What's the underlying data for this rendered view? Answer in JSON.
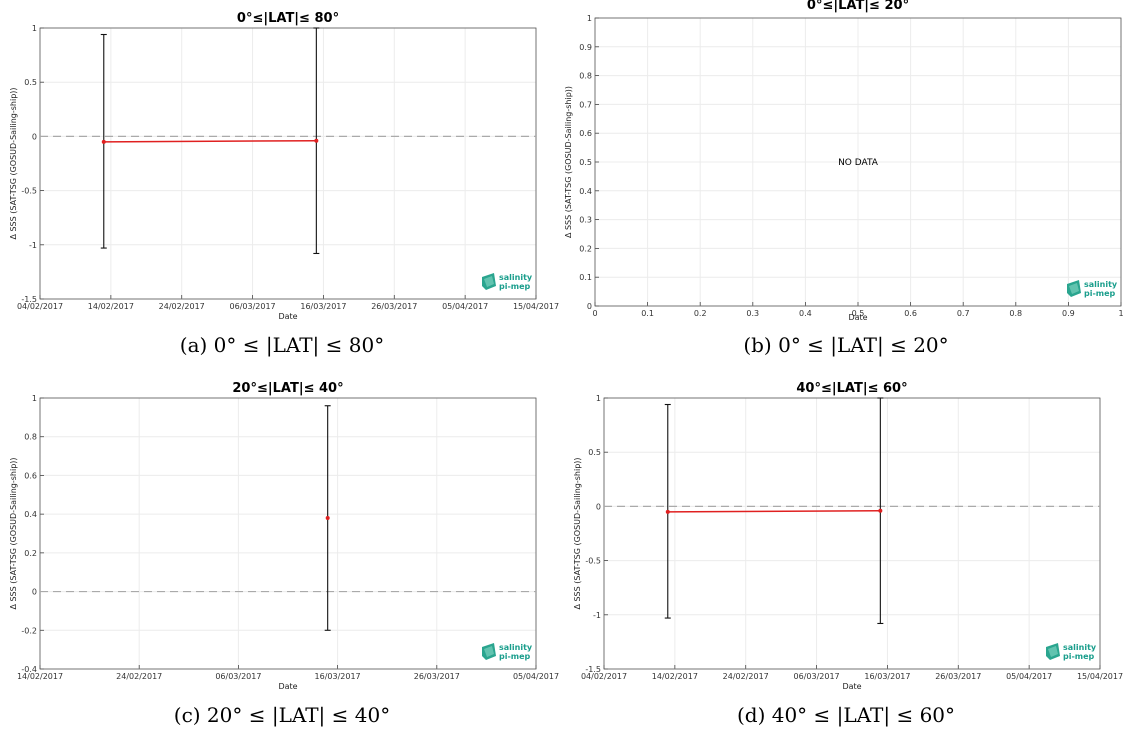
{
  "chart_data": [
    {
      "id": "a",
      "type": "line",
      "title": "0°≤|LAT|≤ 80°",
      "caption": "(a) 0° ≤ |LAT| ≤ 80°",
      "xlabel": "Date",
      "ylabel": "Δ SSS (SAT-TSG (GOSUD-Sailing-ship))",
      "xlim": [
        "04/02/2017",
        "15/04/2017"
      ],
      "ylim": [
        -1.5,
        1
      ],
      "xticks": [
        "04/02/2017",
        "14/02/2017",
        "24/02/2017",
        "06/03/2017",
        "16/03/2017",
        "26/03/2017",
        "05/04/2017",
        "15/04/2017"
      ],
      "yticks": [
        "-1.5",
        "-1",
        "-0.5",
        "0",
        "0.5",
        "1"
      ],
      "yticks_values": [
        -1.5,
        -1,
        -0.5,
        0,
        0.5,
        1
      ],
      "grid": true,
      "zero_line": true,
      "points": [
        {
          "x": "13/02/2017",
          "y": -0.05,
          "ylow": -1.03,
          "yhigh": 0.94
        },
        {
          "x": "15/03/2017",
          "y": -0.04,
          "ylow": -1.08,
          "yhigh": 1.0
        }
      ],
      "logo": [
        "salinity",
        "pi-mep"
      ]
    },
    {
      "id": "b",
      "type": "line",
      "title": "0°≤|LAT|≤ 20°",
      "caption": "(b) 0° ≤ |LAT| ≤ 20°",
      "xlabel": "Date",
      "ylabel": "Δ SSS (SAT-TSG (GOSUD-Sailing-ship))",
      "xlim": [
        0,
        1
      ],
      "ylim": [
        0,
        1
      ],
      "xticks": [
        "0",
        "0.1",
        "0.2",
        "0.3",
        "0.4",
        "0.5",
        "0.6",
        "0.7",
        "0.8",
        "0.9",
        "1"
      ],
      "yticks": [
        "0",
        "0.1",
        "0.2",
        "0.3",
        "0.4",
        "0.5",
        "0.6",
        "0.7",
        "0.8",
        "0.9",
        "1"
      ],
      "yticks_values": [
        0,
        0.1,
        0.2,
        0.3,
        0.4,
        0.5,
        0.6,
        0.7,
        0.8,
        0.9,
        1
      ],
      "grid": true,
      "zero_line": false,
      "annotation": "NO DATA",
      "points": [],
      "logo": [
        "salinity",
        "pi-mep"
      ]
    },
    {
      "id": "c",
      "type": "line",
      "title": "20°≤|LAT|≤ 40°",
      "caption": "(c) 20° ≤ |LAT| ≤ 40°",
      "xlabel": "Date",
      "ylabel": "Δ SSS (SAT-TSG (GOSUD-Sailing-ship))",
      "xlim": [
        "14/02/2017",
        "05/04/2017"
      ],
      "ylim": [
        -0.4,
        1
      ],
      "xticks": [
        "14/02/2017",
        "24/02/2017",
        "06/03/2017",
        "16/03/2017",
        "26/03/2017",
        "05/04/2017"
      ],
      "yticks": [
        "-0.4",
        "-0.2",
        "0",
        "0.2",
        "0.4",
        "0.6",
        "0.8",
        "1"
      ],
      "yticks_values": [
        -0.4,
        -0.2,
        0,
        0.2,
        0.4,
        0.6,
        0.8,
        1
      ],
      "grid": true,
      "zero_line": true,
      "points": [
        {
          "x": "15/03/2017",
          "y": 0.38,
          "ylow": -0.2,
          "yhigh": 0.96
        }
      ],
      "logo": [
        "salinity",
        "pi-mep"
      ]
    },
    {
      "id": "d",
      "type": "line",
      "title": "40°≤|LAT|≤ 60°",
      "caption": "(d) 40° ≤ |LAT| ≤ 60°",
      "xlabel": "Date",
      "ylabel": "Δ SSS (SAT-TSG (GOSUD-Sailing-ship))",
      "xlim": [
        "04/02/2017",
        "15/04/2017"
      ],
      "ylim": [
        -1.5,
        1
      ],
      "xticks": [
        "04/02/2017",
        "14/02/2017",
        "24/02/2017",
        "06/03/2017",
        "16/03/2017",
        "26/03/2017",
        "05/04/2017",
        "15/04/2017"
      ],
      "yticks": [
        "-1.5",
        "-1",
        "-0.5",
        "0",
        "0.5",
        "1"
      ],
      "yticks_values": [
        -1.5,
        -1,
        -0.5,
        0,
        0.5,
        1
      ],
      "grid": true,
      "zero_line": true,
      "points": [
        {
          "x": "13/02/2017",
          "y": -0.05,
          "ylow": -1.03,
          "yhigh": 0.94
        },
        {
          "x": "15/03/2017",
          "y": -0.04,
          "ylow": -1.08,
          "yhigh": 1.0
        }
      ],
      "logo": [
        "salinity",
        "pi-mep"
      ]
    }
  ]
}
